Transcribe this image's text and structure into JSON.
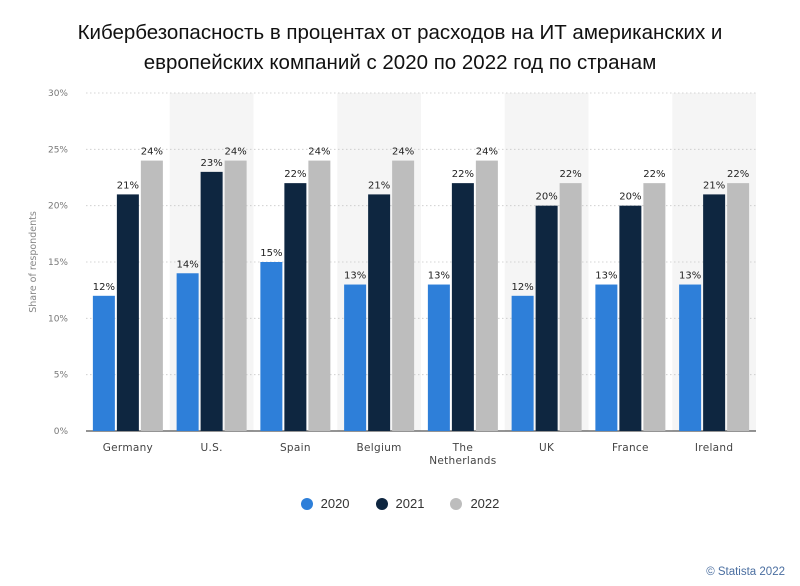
{
  "title": "Кибербезопасность в процентах от расходов на ИТ американских и европейских компаний с 2020 по 2022 год по странам",
  "credit": "© Statista 2022",
  "chart_data": {
    "type": "bar",
    "title": "Кибербезопасность в процентах от расходов на ИТ американских и европейских компаний с 2020 по 2022 год по странам",
    "xlabel": "",
    "ylabel": "Share of respondents",
    "ylim": [
      0,
      30
    ],
    "yticks": [
      "0%",
      "5%",
      "10%",
      "15%",
      "20%",
      "25%",
      "30%"
    ],
    "grid": true,
    "legend_position": "bottom",
    "categories": [
      [
        "Germany"
      ],
      [
        "U.S."
      ],
      [
        "Spain"
      ],
      [
        "Belgium"
      ],
      [
        "The",
        "Netherlands"
      ],
      [
        "UK"
      ],
      [
        "France"
      ],
      [
        "Ireland"
      ]
    ],
    "series": [
      {
        "name": "2020",
        "color": "#2e7fd9",
        "values": [
          12,
          14,
          15,
          13,
          13,
          12,
          13,
          13
        ],
        "labels": [
          "12%",
          "14%",
          "15%",
          "13%",
          "13%",
          "12%",
          "13%",
          "13%"
        ]
      },
      {
        "name": "2021",
        "color": "#0e2640",
        "values": [
          21,
          23,
          22,
          21,
          22,
          20,
          20,
          21
        ],
        "labels": [
          "21%",
          "23%",
          "22%",
          "21%",
          "22%",
          "20%",
          "20%",
          "21%"
        ]
      },
      {
        "name": "2022",
        "color": "#bdbdbd",
        "values": [
          24,
          24,
          24,
          24,
          24,
          22,
          22,
          22
        ],
        "labels": [
          "24%",
          "24%",
          "24%",
          "24%",
          "24%",
          "22%",
          "22%",
          "22%"
        ]
      }
    ]
  }
}
